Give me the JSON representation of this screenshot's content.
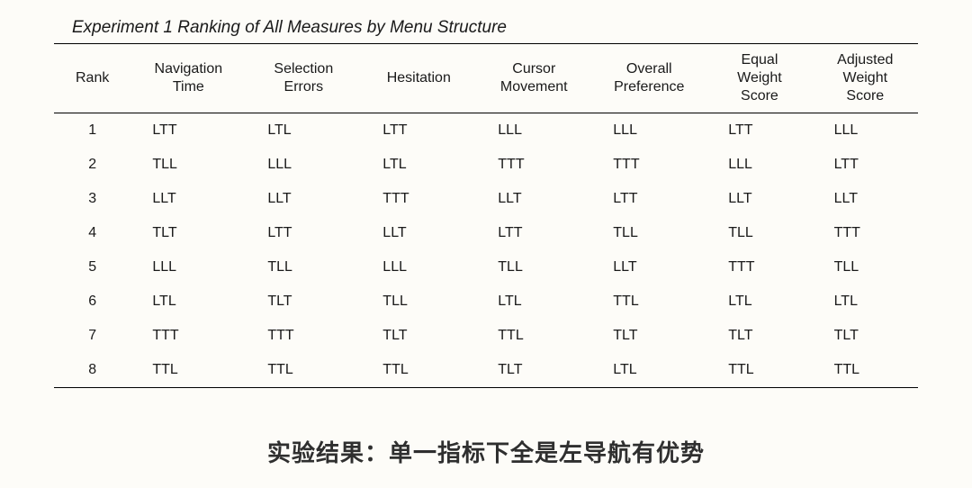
{
  "table": {
    "title": "Experiment 1 Ranking of All Measures by Menu Structure",
    "title_fontsize": 19,
    "title_style": "italic",
    "columns": [
      "Rank",
      "Navigation\nTime",
      "Selection\nErrors",
      "Hesitation",
      "Cursor\nMovement",
      "Overall\nPreference",
      "Equal\nWeight\nScore",
      "Adjusted\nWeight\nScore"
    ],
    "header_fontsize": 16,
    "cell_fontsize": 16,
    "border_color": "#000000",
    "background_color": "#fdfcf8",
    "text_color": "#1a1a1a",
    "column_widths_pct": [
      8,
      12,
      12,
      12,
      12,
      12,
      11,
      11
    ],
    "rows": [
      [
        "1",
        "LTT",
        "LTL",
        "LTT",
        "LLL",
        "LLL",
        "LTT",
        "LLL"
      ],
      [
        "2",
        "TLL",
        "LLL",
        "LTL",
        "TTT",
        "TTT",
        "LLL",
        "LTT"
      ],
      [
        "3",
        "LLT",
        "LLT",
        "TTT",
        "LLT",
        "LTT",
        "LLT",
        "LLT"
      ],
      [
        "4",
        "TLT",
        "LTT",
        "LLT",
        "LTT",
        "TLL",
        "TLL",
        "TTT"
      ],
      [
        "5",
        "LLL",
        "TLL",
        "LLL",
        "TLL",
        "LLT",
        "TTT",
        "TLL"
      ],
      [
        "6",
        "LTL",
        "TLT",
        "TLL",
        "LTL",
        "TTL",
        "LTL",
        "LTL"
      ],
      [
        "7",
        "TTT",
        "TTT",
        "TLT",
        "TTL",
        "TLT",
        "TLT",
        "TLT"
      ],
      [
        "8",
        "TTL",
        "TTL",
        "TTL",
        "TLT",
        "LTL",
        "TTL",
        "TTL"
      ]
    ]
  },
  "caption": {
    "text": "实验结果：单一指标下全是左导航有优势",
    "fontsize": 26,
    "fontweight": "bold",
    "color": "#2f2f2f"
  }
}
